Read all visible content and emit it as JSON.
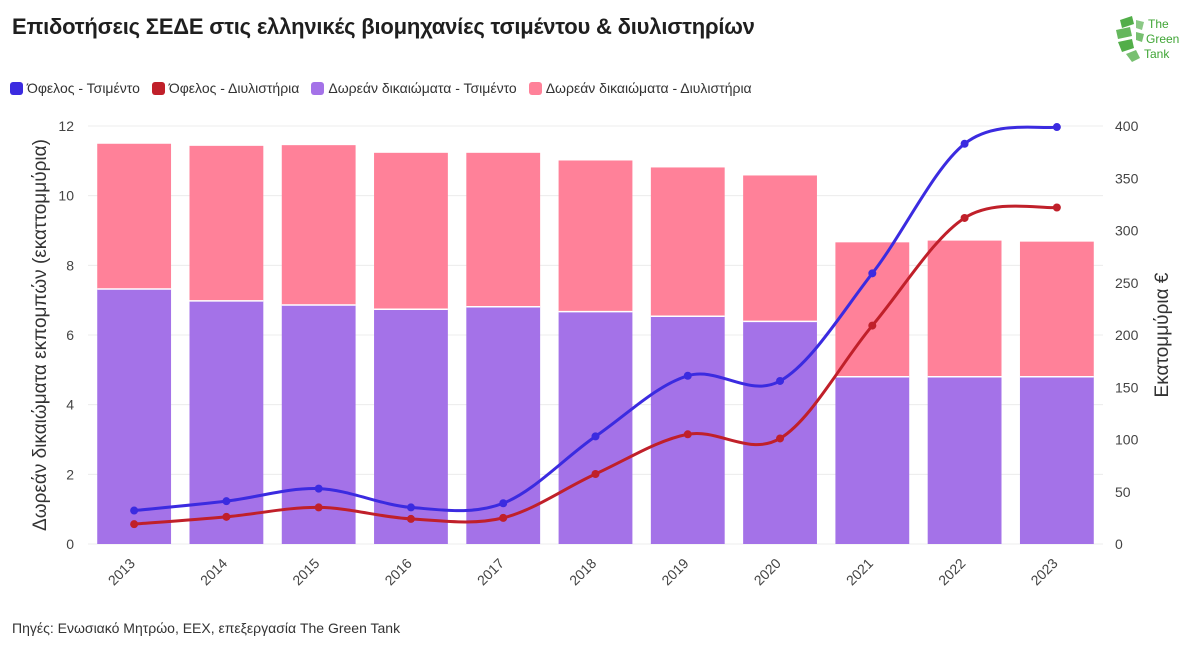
{
  "header": {
    "title": "Επιδοτήσεις ΣΕΔΕ στις ελληνικές βιομηχανίες τσιμέντου & διυλιστηρίων"
  },
  "logo": {
    "line1": "The",
    "line2": "Green",
    "line3": "Tank"
  },
  "footer": {
    "source": "Πηγές: Ενωσιακό Μητρώο, EEX, επεξεργασία The Green Tank"
  },
  "colors": {
    "cement_line": "#3b2be0",
    "refinery_line": "#c0202a",
    "cement_bar": "#a472e8",
    "refinery_bar": "#ff8199",
    "logo_green": "#3fa535"
  },
  "chart_data": {
    "type": "bar",
    "categories": [
      "2013",
      "2014",
      "2015",
      "2016",
      "2017",
      "2018",
      "2019",
      "2020",
      "2021",
      "2022",
      "2023"
    ],
    "ylabel": "Δωρεάν δικαιώματα εκπομπών (εκαττομμύρια)",
    "y2label": "Εκατομμύρια €",
    "ylim": [
      0,
      12
    ],
    "y2lim": [
      0,
      400
    ],
    "yticks": [
      "0",
      "2",
      "4",
      "6",
      "8",
      "10",
      "12"
    ],
    "y2ticks": [
      "0",
      "50",
      "100",
      "150",
      "200",
      "250",
      "300",
      "350",
      "400"
    ],
    "stacked": true,
    "grid": true,
    "legend_position": "top-left",
    "series": [
      {
        "name": "Όφελος - Τσιμέντο",
        "type": "line",
        "axis": "right",
        "values": [
          32,
          41,
          53,
          35,
          39,
          103,
          161,
          156,
          259,
          383,
          399
        ]
      },
      {
        "name": "Όφελος - Διυλιστήρια",
        "type": "line",
        "axis": "right",
        "values": [
          19,
          26,
          35,
          24,
          25,
          67,
          105,
          101,
          209,
          312,
          322
        ]
      },
      {
        "name": "Δωρεάν δικαιώματα - Τσιμέντο",
        "type": "bar",
        "axis": "left",
        "values": [
          7.32,
          6.98,
          6.86,
          6.74,
          6.81,
          6.67,
          6.54,
          6.39,
          4.8,
          4.8,
          4.8
        ]
      },
      {
        "name": "Δωρεάν δικαιώματα - Διυλιστήρια",
        "type": "bar",
        "axis": "left",
        "values": [
          4.17,
          4.45,
          4.59,
          4.49,
          4.42,
          4.34,
          4.27,
          4.19,
          3.86,
          3.91,
          3.88
        ]
      }
    ]
  }
}
